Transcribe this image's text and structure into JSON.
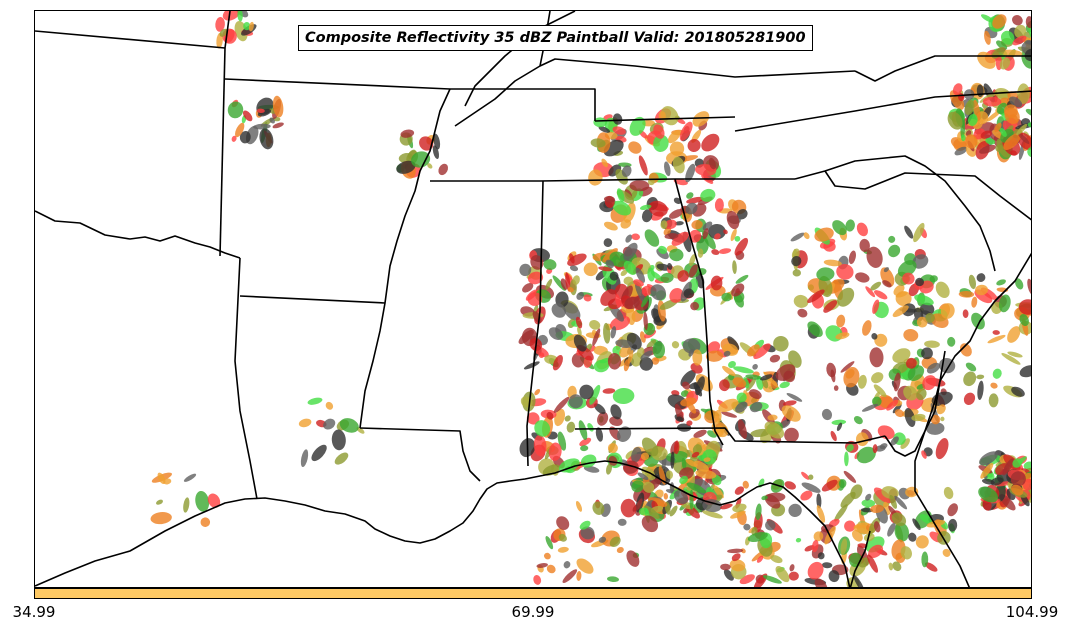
{
  "title": "Composite Reflectivity 35 dBZ Paintball Valid: 201805281900",
  "colorbar": {
    "color": "#fec964",
    "ticks": [
      "34.99",
      "69.99",
      "104.99"
    ]
  },
  "map": {
    "region": "Southeastern United States",
    "ensemble_member_colors": [
      "#2f2f2f",
      "#e8e8e8",
      "#d02020",
      "#ee8020",
      "#f0a030",
      "#8c9a30",
      "#3aa830",
      "#44dd44",
      "#b0b040",
      "#a03030",
      "#606060",
      "#ff4040"
    ]
  }
}
